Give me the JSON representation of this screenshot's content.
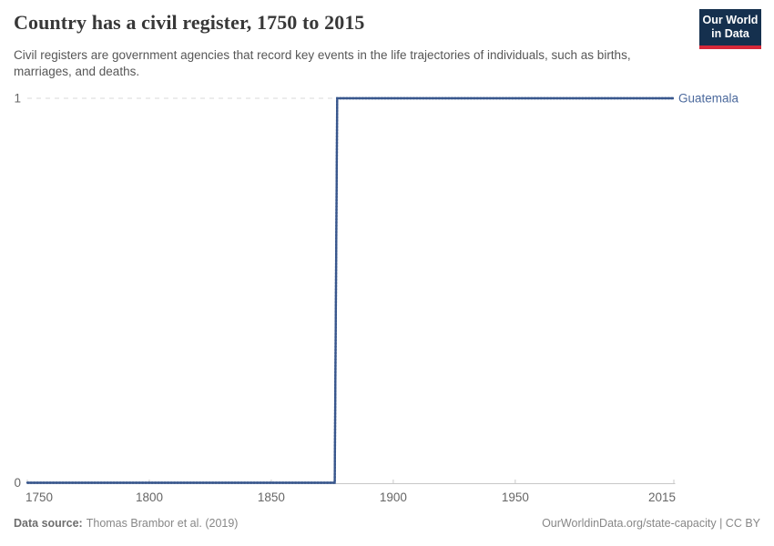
{
  "header": {
    "title": "Country has a civil register, 1750 to 2015",
    "subtitle": "Civil registers are government agencies that record key events in the life trajectories of individuals, such as births, marriages, and deaths.",
    "logo": {
      "line1": "Our World",
      "line2": "in Data"
    }
  },
  "chart_data": {
    "type": "line",
    "subtype": "step",
    "title": "Country has a civil register, 1750 to 2015",
    "xlabel": "",
    "ylabel": "",
    "xlim": [
      1750,
      2015
    ],
    "ylim": [
      0,
      1
    ],
    "x_ticks": [
      "1750",
      "1800",
      "1850",
      "1900",
      "1950",
      "2015"
    ],
    "x_tick_years": [
      1750,
      1800,
      1850,
      1900,
      1950,
      2015
    ],
    "y_ticks": [
      "0",
      "1"
    ],
    "y_tick_values": [
      0,
      1
    ],
    "gridlines": {
      "horizontal_dashed_at": 1
    },
    "legend_position": "end-of-line",
    "series": [
      {
        "name": "Guatemala",
        "color": "#4c6a9d",
        "points": [
          [
            1750,
            0
          ],
          [
            1876,
            0
          ],
          [
            1877,
            1
          ],
          [
            2015,
            1
          ]
        ]
      }
    ]
  },
  "footer": {
    "datasource_label": "Data source:",
    "datasource_value": "Thomas Brambor et al. (2019)",
    "attribution": "OurWorldinData.org/state-capacity | CC BY"
  },
  "colors": {
    "accent_line": "#4c6a9d",
    "line_dot_texture": "#38568c",
    "logo_navy": "#15304e",
    "logo_red": "#d62839",
    "grid": "#d8d8d8",
    "axis": "#c8c8c8",
    "tick_text": "#666666",
    "title_text": "#383838",
    "subtitle_text": "#565656",
    "footer_text": "#878787"
  }
}
